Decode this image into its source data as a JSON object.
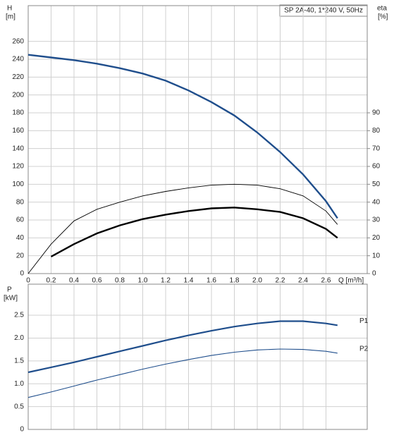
{
  "chart_data": [
    {
      "type": "line",
      "title": "SP 2A-40, 1*240 V, 50Hz",
      "y_label": "H",
      "y_unit": "[m]",
      "y2_label": "eta",
      "y2_unit": "[%]",
      "x_label": "Q [m³/h]",
      "x": [
        0,
        0.2,
        0.4,
        0.6,
        0.8,
        1.0,
        1.2,
        1.4,
        1.6,
        1.8,
        2.0,
        2.2,
        2.4,
        2.6,
        2.7
      ],
      "xlim": [
        0,
        2.96
      ],
      "xticks": [
        0,
        0.2,
        0.4,
        0.6,
        0.8,
        {
          "value": 1.0,
          "label": "1.0"
        },
        1.2,
        1.4,
        1.6,
        1.8,
        {
          "value": 2.0,
          "label": "2.0"
        },
        2.2,
        2.4,
        2.6
      ],
      "ylim": [
        0,
        300
      ],
      "yticks": [
        0,
        20,
        40,
        60,
        80,
        100,
        120,
        140,
        160,
        180,
        200,
        220,
        240,
        260
      ],
      "y2lim": [
        0,
        150
      ],
      "y2ticks": [
        0,
        10,
        20,
        30,
        40,
        50,
        60,
        70,
        80,
        90
      ],
      "grid": true,
      "series": [
        {
          "color": "#1f4e8c",
          "values": [
            245,
            242,
            239,
            235,
            230,
            224,
            216,
            205,
            192,
            177,
            158,
            136,
            111,
            81,
            62
          ]
        },
        {
          "color": "#000000",
          "axis": "y2",
          "values": [
            0,
            16.5,
            29.5,
            36,
            40,
            43.5,
            46,
            48,
            49.5,
            50,
            49.5,
            47.5,
            43.5,
            35,
            27.5
          ]
        },
        {
          "color": "#000000",
          "axis": "y2",
          "values": [
            null,
            9.5,
            16.5,
            22.5,
            27,
            30.5,
            33,
            35,
            36.5,
            37,
            36,
            34.5,
            31,
            25,
            20
          ]
        }
      ]
    },
    {
      "type": "line",
      "y_label": "P",
      "y_unit": "[kW]",
      "x": [
        0,
        0.2,
        0.4,
        0.6,
        0.8,
        1.0,
        1.2,
        1.4,
        1.6,
        1.8,
        2.0,
        2.2,
        2.4,
        2.6,
        2.7
      ],
      "xlim": [
        0,
        2.96
      ],
      "ylim": [
        0,
        3.18
      ],
      "yticks": [
        0,
        0.5,
        {
          "value": 1.0,
          "label": "1.0"
        },
        1.5,
        {
          "value": 2.0,
          "label": "2.0"
        },
        2.5
      ],
      "grid": true,
      "series": [
        {
          "name": "P1",
          "color": "#1f4e8c",
          "values": [
            1.25,
            1.36,
            1.47,
            1.59,
            1.71,
            1.83,
            1.95,
            2.06,
            2.16,
            2.25,
            2.32,
            2.37,
            2.37,
            2.32,
            2.28
          ]
        },
        {
          "name": "P2",
          "color": "#1f4e8c",
          "values": [
            0.7,
            0.82,
            0.95,
            1.08,
            1.2,
            1.32,
            1.43,
            1.53,
            1.62,
            1.69,
            1.74,
            1.76,
            1.75,
            1.71,
            1.67
          ]
        }
      ]
    }
  ]
}
